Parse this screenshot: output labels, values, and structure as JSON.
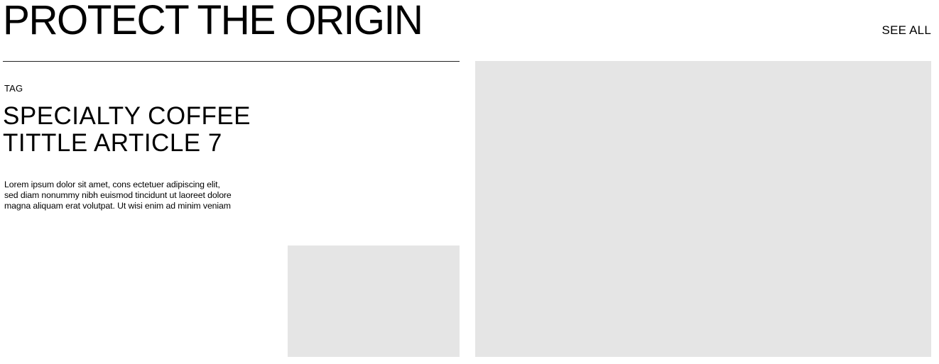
{
  "section": {
    "title": "PROTECT THE ORIGIN",
    "see_all_label": "SEE ALL"
  },
  "article": {
    "tag": "TAG",
    "title_line1": "SPECIALTY COFFEE",
    "title_line2": "TITTLE ARTICLE 7",
    "excerpt": "Lorem ipsum dolor sit amet, cons ectetuer adipiscing elit, sed diam nonummy nibh euismod tincidunt ut laoreet dolore magna aliquam erat volutpat. Ut wisi enim ad minim veniam"
  },
  "colors": {
    "text": "#000000",
    "background": "#ffffff",
    "image_placeholder": "#e5e5e5",
    "divider": "#222222"
  }
}
